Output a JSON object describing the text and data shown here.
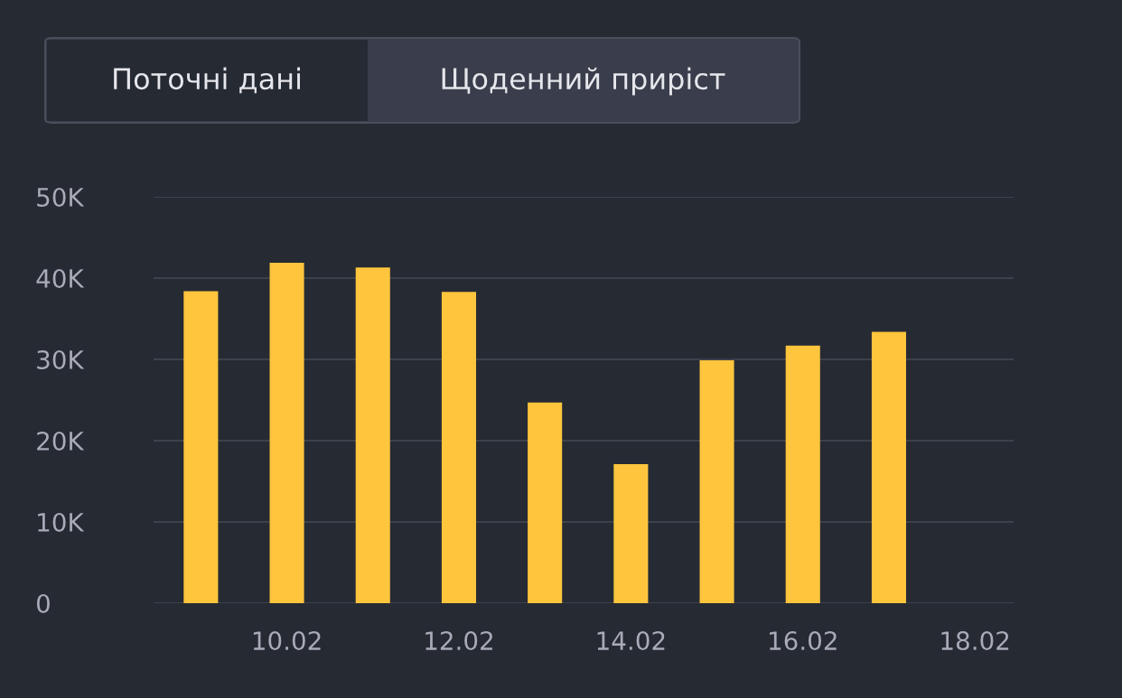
{
  "chart_data": {
    "type": "bar",
    "annotations": [
      "Поточні дані",
      "Щоденний приріст"
    ],
    "categories": [
      null,
      "10.02",
      null,
      "12.02",
      null,
      "14.02",
      null,
      "16.02",
      null,
      "18.02"
    ],
    "values": [
      38400,
      41900,
      41300,
      38300,
      24700,
      17100,
      29900,
      31700,
      33400,
      null
    ],
    "color": "#ffc53d",
    "ylim": [
      0,
      50000
    ],
    "yticks": [
      0,
      {
        "value": 10000,
        "label": "10K"
      },
      {
        "value": 20000,
        "label": "20K"
      },
      {
        "value": 30000,
        "label": "30K"
      },
      {
        "value": 40000,
        "label": "40K"
      },
      {
        "value": 50000,
        "label": "50K"
      }
    ],
    "grid": "y"
  }
}
